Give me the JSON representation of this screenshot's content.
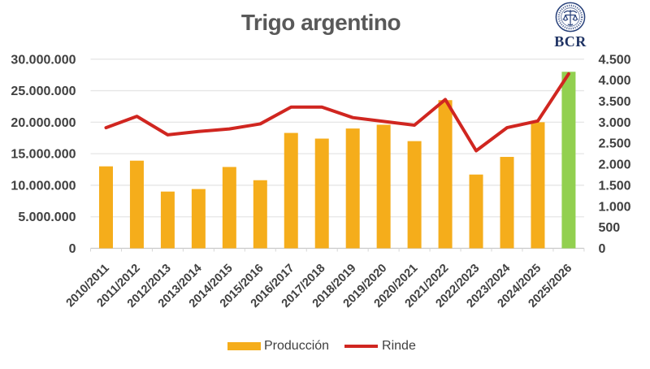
{
  "header": {
    "title": "Trigo argentino",
    "title_color": "#595959"
  },
  "logo": {
    "text": "BCR",
    "color": "#1E3263"
  },
  "chart_data": {
    "type": "bar",
    "combo": "bar+line",
    "title": "Trigo argentino",
    "categories": [
      "2010/2011",
      "2011/2012",
      "2012/2013",
      "2013/2014",
      "2014/2015",
      "2015/2016",
      "2016/2017",
      "2017/2018",
      "2018/2019",
      "2019/2020",
      "2020/2021",
      "2021/2022",
      "2022/2023",
      "2023/2024",
      "2024/2025",
      "2025/2026"
    ],
    "series": [
      {
        "name": "Producción",
        "type": "bar",
        "axis": "left",
        "values": [
          13000000,
          13900000,
          9000000,
          9400000,
          12900000,
          10800000,
          18300000,
          17400000,
          19000000,
          19600000,
          17000000,
          23500000,
          11700000,
          14500000,
          20000000,
          28000000
        ]
      },
      {
        "name": "Rinde",
        "type": "line",
        "axis": "right",
        "values": [
          2870,
          3140,
          2700,
          2780,
          2840,
          2960,
          3360,
          3360,
          3110,
          3020,
          2930,
          3540,
          2320,
          2870,
          3030,
          4150
        ]
      }
    ],
    "left_axis": {
      "min": 0,
      "max": 30000000,
      "step": 5000000,
      "tick_labels": [
        "0",
        "5.000.000",
        "10.000.000",
        "15.000.000",
        "20.000.000",
        "25.000.000",
        "30.000.000"
      ]
    },
    "right_axis": {
      "min": 0,
      "max": 4500,
      "step": 500,
      "tick_labels": [
        "0",
        "500",
        "1.000",
        "1.500",
        "2.000",
        "2.500",
        "3.000",
        "3.500",
        "4.000",
        "4.500"
      ]
    },
    "grid": true,
    "legend_position": "bottom",
    "colors": {
      "bar": "#F5AD1B",
      "bar_highlight_last": "#92D050",
      "line": "#D02620",
      "grid": "#E6E6E6",
      "axis_line": "#C9C9C9",
      "tick": "#C9C9C9",
      "axis_text": "#404040"
    }
  },
  "legend": {
    "items": [
      {
        "label": "Producción",
        "swatch": "bar",
        "color": "#F5AD1B"
      },
      {
        "label": "Rinde",
        "swatch": "line",
        "color": "#D02620"
      }
    ]
  }
}
